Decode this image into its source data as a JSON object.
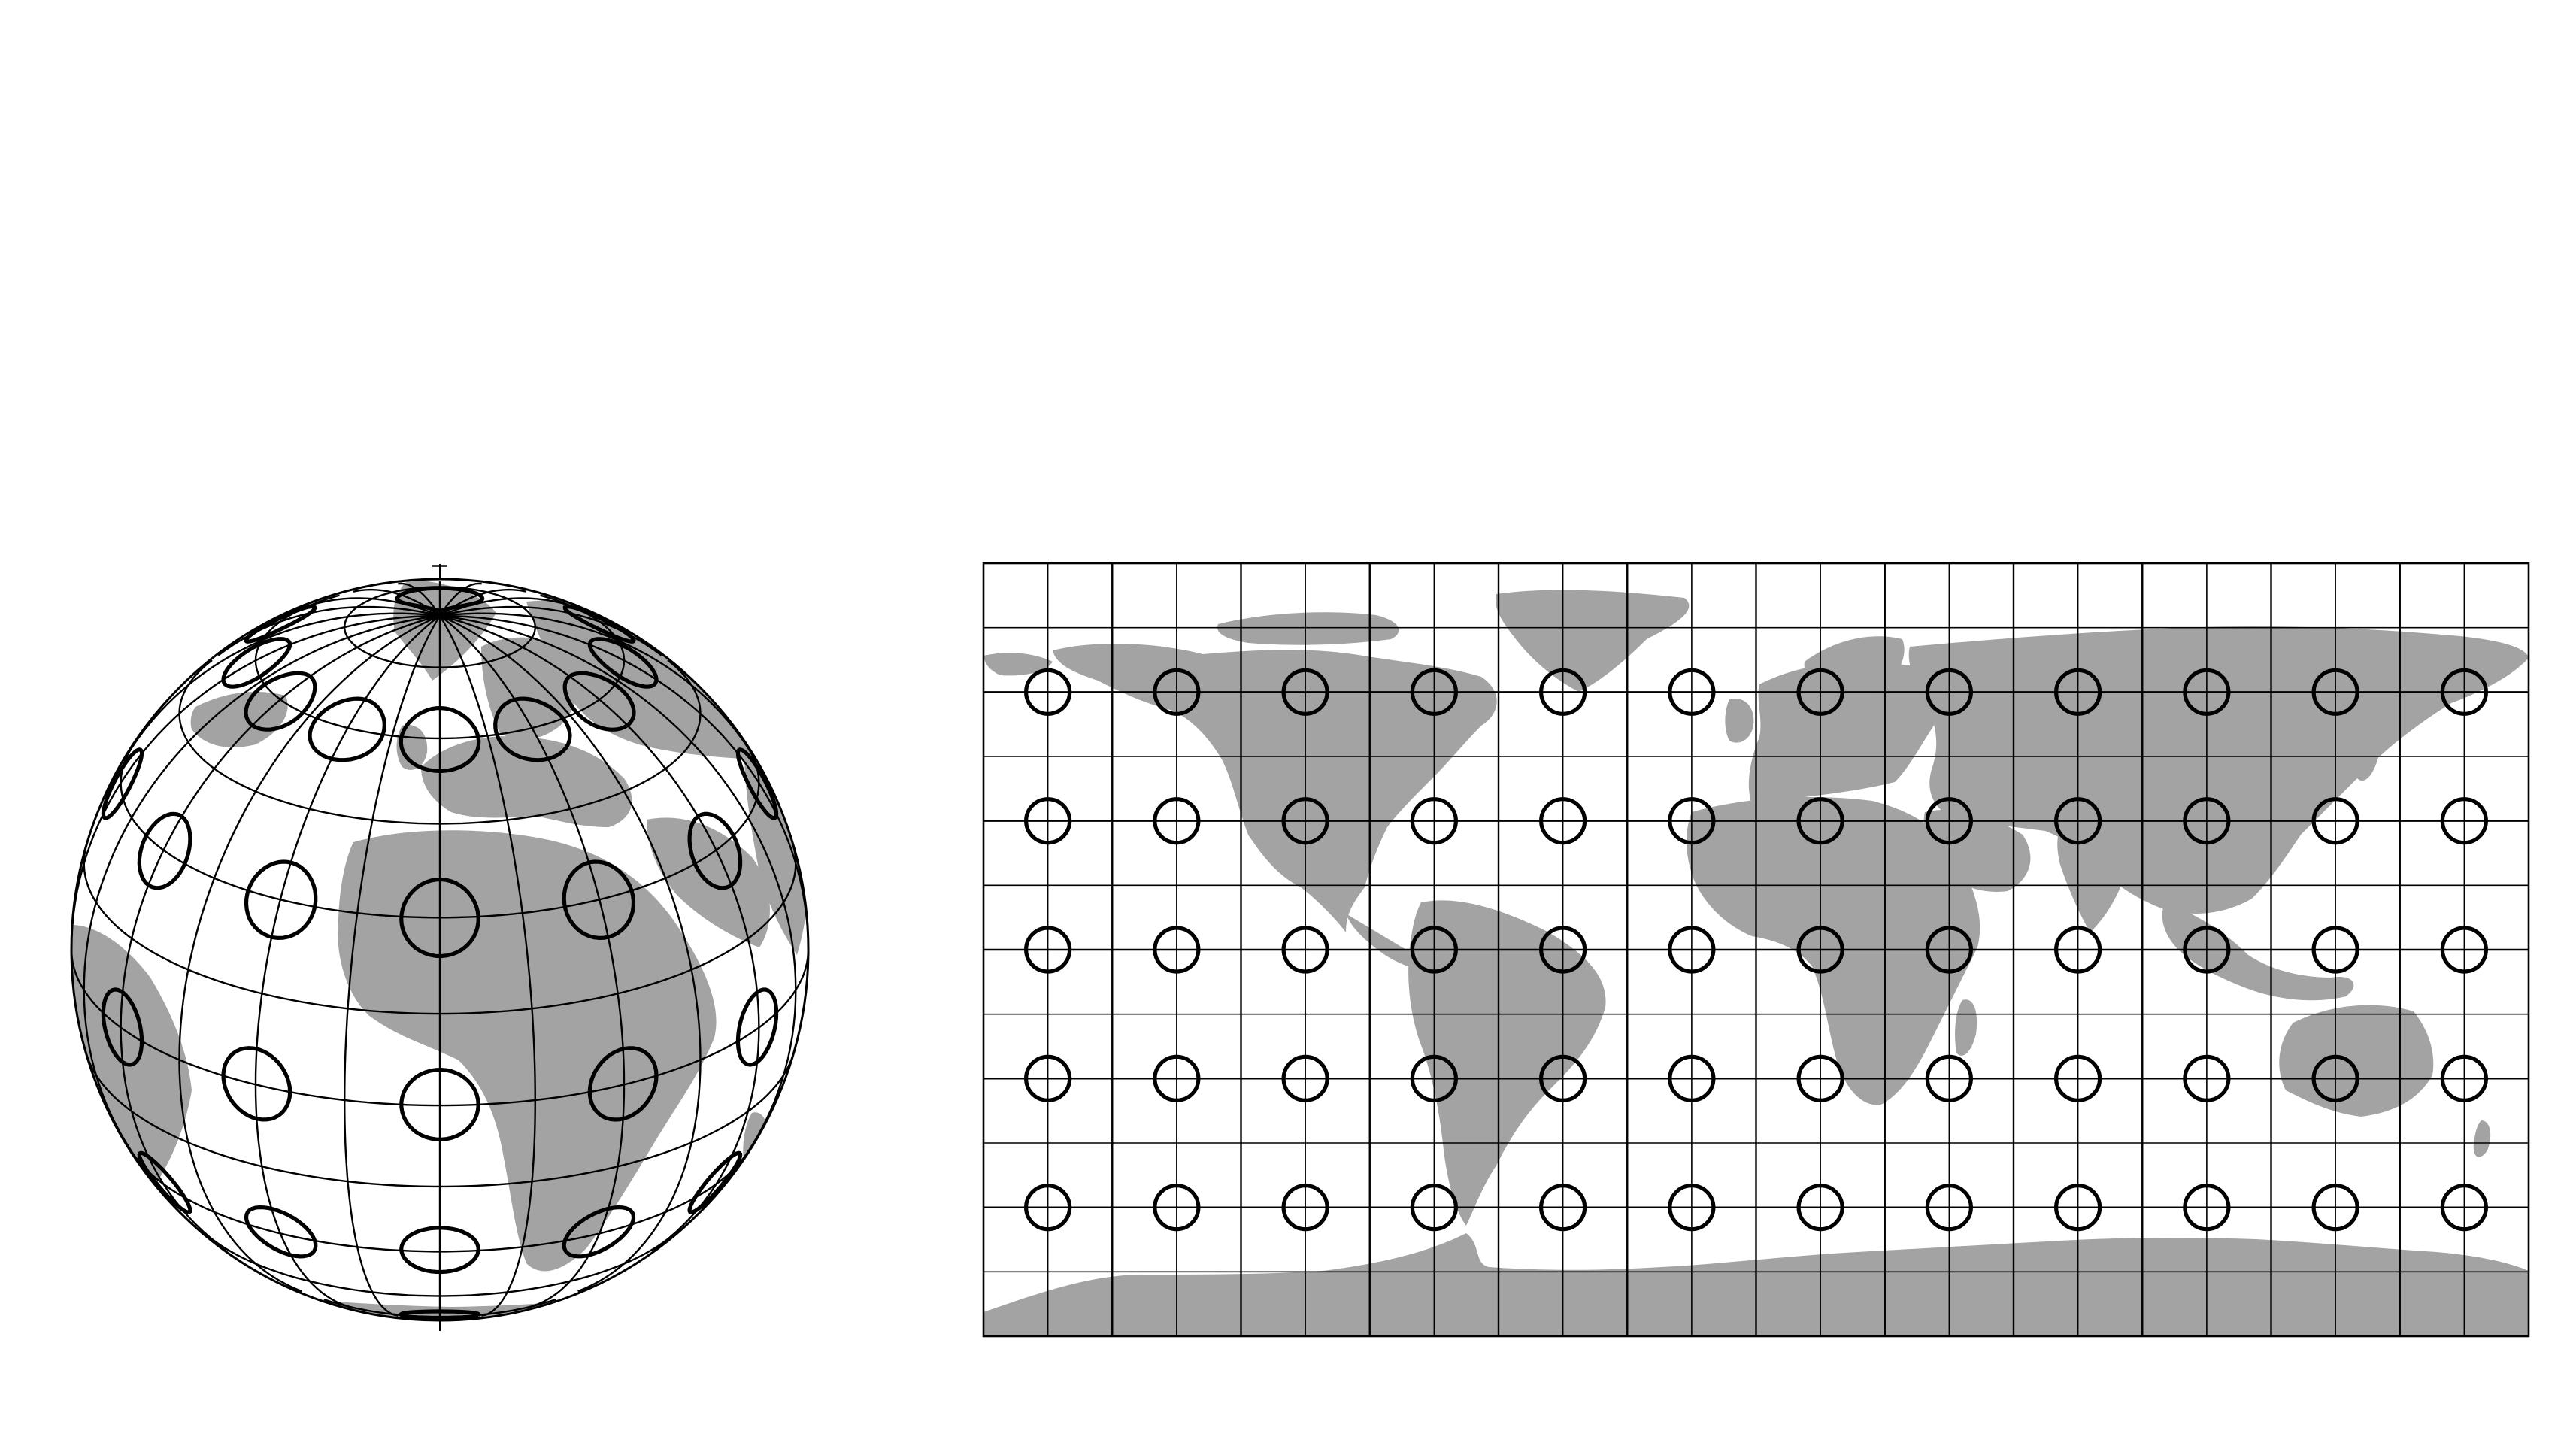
{
  "figure": {
    "panels": [
      {
        "id": "orthographic-globe",
        "projection": "orthographic",
        "graticule_lon_step_deg": 15,
        "graticule_lat_step_deg": 15,
        "tissot_indicatrix_lon_step_deg": 30,
        "tissot_indicatrix_lats_deg": [
          -60,
          -30,
          0,
          30,
          60
        ],
        "tissot_radius_deg": 6
      },
      {
        "id": "equirectangular-map",
        "projection": "plate-carree",
        "lon_range": [
          -180,
          180
        ],
        "lat_range": [
          -90,
          90
        ],
        "graticule_lon_step_deg": 15,
        "graticule_lat_step_deg": 15,
        "tissot_indicatrix_lons_deg": [
          -165,
          -135,
          -105,
          -75,
          -45,
          -15,
          15,
          45,
          75,
          105,
          135,
          165
        ],
        "tissot_indicatrix_lats_deg": [
          60,
          30,
          0,
          -30,
          -60
        ]
      }
    ],
    "colors": {
      "land": "#a3a3a3",
      "ocean": "#ffffff",
      "lines": "#000000"
    }
  }
}
